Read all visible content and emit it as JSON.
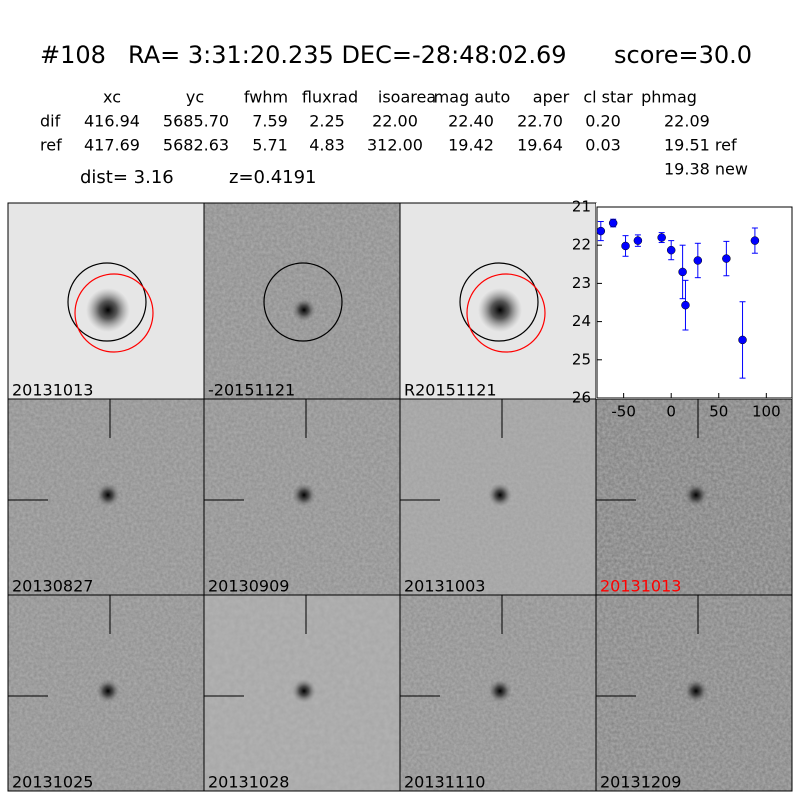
{
  "header": {
    "id": "#108",
    "coords": "RA= 3:31:20.235 DEC=-28:48:02.69",
    "score": "score=30.0"
  },
  "table": {
    "columns": [
      "xc",
      "yc",
      "fwhm",
      "fluxrad",
      "isoarea",
      "mag auto",
      "aper",
      "cl star",
      "phmag"
    ],
    "rows": [
      [
        "dif",
        "416.94",
        "5685.70",
        "7.59",
        "2.25",
        "22.00",
        "22.40",
        "22.70",
        "0.20",
        "22.09"
      ],
      [
        "ref",
        "417.69",
        "5682.63",
        "5.71",
        "4.83",
        "312.00",
        "19.42",
        "19.64",
        "0.03",
        "19.51 ref"
      ]
    ],
    "extra": "19.38 new"
  },
  "dist": "dist=  3.16",
  "z": "z=0.4191",
  "panels": [
    "20131013",
    "-20151121",
    "R20151121",
    "20130827",
    "20130909",
    "20131003",
    "20131013",
    "20131025",
    "20131028",
    "20131110",
    "20131209"
  ],
  "chart_data": {
    "type": "scatter",
    "color": "#0000ff",
    "x": [
      -74,
      -61,
      -48,
      -35,
      -10,
      0,
      12,
      15,
      28,
      58,
      75,
      88
    ],
    "values": [
      21.63,
      21.42,
      22.02,
      21.88,
      21.8,
      22.13,
      22.7,
      23.57,
      22.4,
      22.35,
      24.48,
      21.88
    ],
    "errors": [
      0.25,
      0.1,
      0.27,
      0.15,
      0.13,
      0.25,
      0.7,
      0.65,
      0.45,
      0.45,
      1.0,
      0.33
    ],
    "xlim": [
      -78,
      127
    ],
    "ylim": [
      21,
      26
    ],
    "y_inverted": true,
    "xticks": [
      -50,
      0,
      50,
      100
    ],
    "yticks": [
      21,
      22,
      23,
      24,
      25,
      26
    ]
  }
}
